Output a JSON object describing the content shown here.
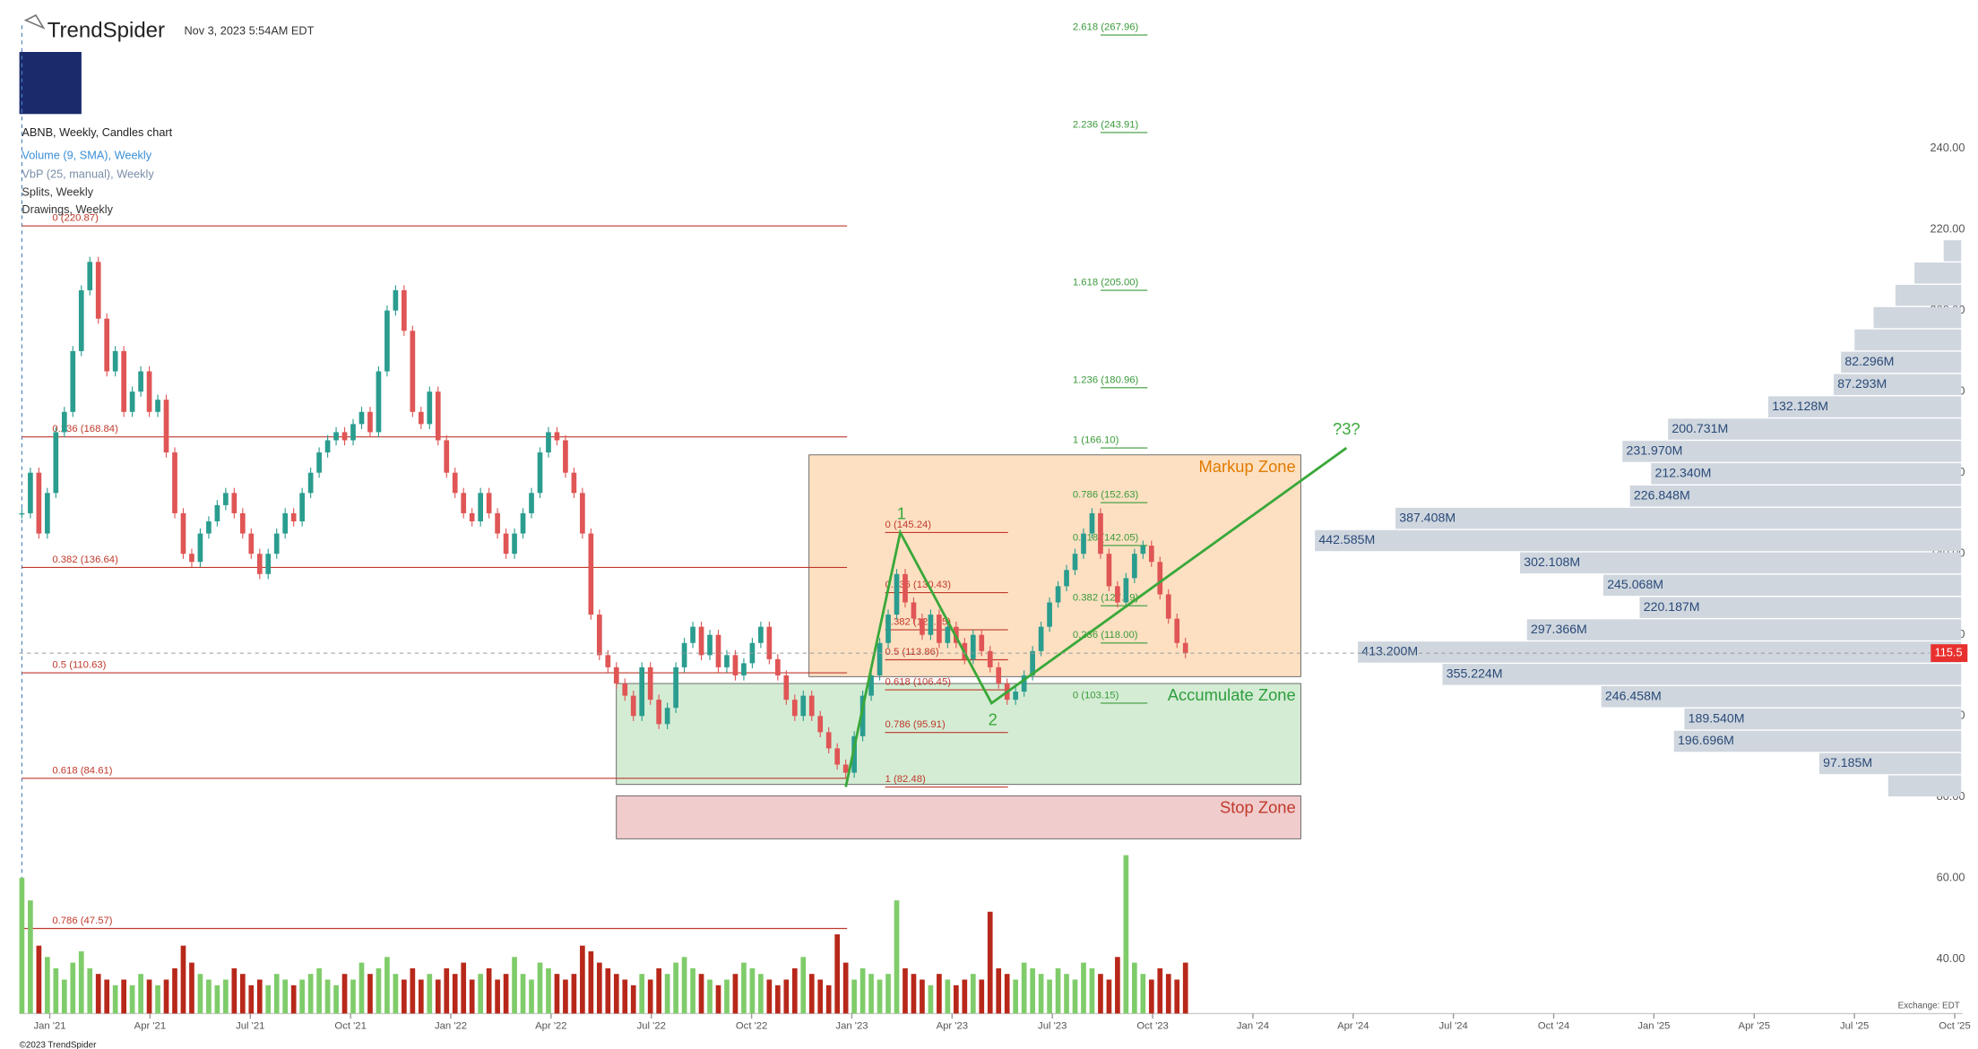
{
  "header": {
    "brand": "TrendSpider",
    "timestamp": "Nov 3, 2023 5:54AM EDT",
    "chart_title": "ABNB, Weekly, Candles chart",
    "indicators": [
      "Volume (9, SMA), Weekly",
      "VbP (25, manual), Weekly",
      "Splits, Weekly",
      "Drawings, Weekly"
    ],
    "exchange": "Exchange: EDT",
    "copyright": "©2023 TrendSpider"
  },
  "chart_data": {
    "type": "candlestick",
    "ylim": [
      26.6,
      276.6
    ],
    "yticks": [
      {
        "value": 40,
        "label": "40.00"
      },
      {
        "value": 60,
        "label": "60.00"
      },
      {
        "value": 80,
        "label": "80.00"
      },
      {
        "value": 100,
        "label": "100.00"
      },
      {
        "value": 120,
        "label": "120.00"
      },
      {
        "value": 140,
        "label": "140.00"
      },
      {
        "value": 160,
        "label": "160.00"
      },
      {
        "value": 180,
        "label": "180.00"
      },
      {
        "value": 200,
        "label": "200.00"
      },
      {
        "value": 220,
        "label": "220.00"
      },
      {
        "value": 240,
        "label": "240.00"
      }
    ],
    "xticks": [
      "Jan '21",
      "Apr '21",
      "Jul '21",
      "Oct '21",
      "Jan '22",
      "Apr '22",
      "Jul '22",
      "Oct '22",
      "Jan '23",
      "Apr '23",
      "Jul '23",
      "Oct '23",
      "Jan '24",
      "Apr '24",
      "Jul '24",
      "Oct '24",
      "Jan '25",
      "Apr '25",
      "Jul '25",
      "Oct '25"
    ],
    "up_color": "#2a9d8f",
    "down_color": "#e05555",
    "closes": [
      150,
      160,
      145,
      155,
      170,
      175,
      190,
      205,
      212,
      198,
      185,
      190,
      175,
      180,
      185,
      175,
      178,
      165,
      150,
      140,
      138,
      145,
      148,
      152,
      155,
      150,
      145,
      140,
      135,
      140,
      145,
      150,
      148,
      155,
      160,
      165,
      168,
      170,
      168,
      172,
      175,
      170,
      185,
      200,
      205,
      195,
      175,
      172,
      180,
      168,
      160,
      155,
      150,
      148,
      155,
      150,
      145,
      140,
      145,
      150,
      155,
      165,
      170,
      168,
      160,
      155,
      145,
      125,
      115,
      112,
      108,
      105,
      100,
      112,
      104,
      98,
      102,
      112,
      118,
      122,
      115,
      120,
      112,
      115,
      110,
      113,
      118,
      122,
      114,
      110,
      104,
      100,
      105,
      100,
      96,
      92,
      88,
      86,
      95,
      105,
      110,
      118,
      125,
      135,
      128,
      124,
      120,
      125,
      118,
      122,
      118,
      114,
      120,
      116,
      112,
      108,
      104,
      106,
      110,
      116,
      122,
      128,
      132,
      136,
      140,
      145,
      150,
      140,
      132,
      128,
      134,
      140,
      142,
      138,
      130,
      124,
      118,
      115.5
    ],
    "volumes": [
      24,
      20,
      12,
      10,
      8,
      6,
      9,
      11,
      8,
      7,
      6,
      5,
      6,
      5,
      7,
      6,
      5,
      6,
      8,
      12,
      9,
      7,
      6,
      5,
      6,
      8,
      7,
      5,
      6,
      5,
      7,
      6,
      5,
      6,
      7,
      8,
      6,
      5,
      7,
      6,
      9,
      7,
      8,
      10,
      7,
      6,
      8,
      6,
      7,
      6,
      8,
      7,
      9,
      6,
      7,
      8,
      6,
      7,
      10,
      7,
      6,
      9,
      8,
      7,
      6,
      7,
      12,
      11,
      9,
      8,
      7,
      6,
      5,
      7,
      6,
      8,
      7,
      9,
      10,
      8,
      7,
      6,
      5,
      6,
      7,
      9,
      8,
      7,
      6,
      5,
      6,
      8,
      10,
      7,
      6,
      5,
      14,
      9,
      6,
      8,
      7,
      6,
      7,
      20,
      8,
      7,
      6,
      5,
      7,
      6,
      5,
      6,
      7,
      6,
      18,
      8,
      7,
      6,
      9,
      8,
      7,
      6,
      8,
      7,
      6,
      9,
      8,
      7,
      6,
      10,
      28,
      9,
      7,
      6,
      8,
      7,
      6,
      9
    ],
    "current_price": {
      "value": 115.5,
      "label": "115.5"
    },
    "volume_profile": {
      "bins": [
        80,
        85.5,
        91,
        96.5,
        102,
        107.5,
        113,
        118.5,
        124,
        129.5,
        135,
        140.5,
        146,
        151.5,
        157,
        162.5,
        168,
        173.5,
        179,
        184.5,
        190,
        195.5,
        201,
        206.5,
        212,
        217.5
      ],
      "values": [
        50,
        97.185,
        196.696,
        189.54,
        246.458,
        355.224,
        413.2,
        297.366,
        220.187,
        245.068,
        302.108,
        442.585,
        387.408,
        226.848,
        212.34,
        231.97,
        200.731,
        132.128,
        87.293,
        82.296,
        73,
        60,
        45,
        32,
        12
      ],
      "value_labels": [
        null,
        "97.185M",
        "196.696M",
        "189.540M",
        "246.458M",
        "355.224M",
        "413.200M",
        "297.366M",
        "220.187M",
        "245.068M",
        "302.108M",
        "442.585M",
        "387.408M",
        "226.848M",
        "212.340M",
        "231.970M",
        "200.731M",
        "132.128M",
        "87.293M",
        "82.296M",
        null,
        null,
        null,
        null,
        null
      ]
    },
    "fib_main": [
      {
        "value": 220.87,
        "label": "0 (220.87)"
      },
      {
        "value": 168.84,
        "label": "0.236 (168.84)"
      },
      {
        "value": 136.64,
        "label": "0.382 (136.64)"
      },
      {
        "value": 110.63,
        "label": "0.5 (110.63)"
      },
      {
        "value": 84.61,
        "label": "0.618 (84.61)"
      },
      {
        "value": 47.57,
        "label": "0.786 (47.57)"
      }
    ],
    "fib_retrace": [
      {
        "value": 145.24,
        "label": "0 (145.24)"
      },
      {
        "value": 130.43,
        "label": "0.236 (130.43)"
      },
      {
        "value": 121.25,
        "label": "0.382 (121.25)"
      },
      {
        "value": 113.86,
        "label": "0.5 (113.86)"
      },
      {
        "value": 106.45,
        "label": "0.618 (106.45)"
      },
      {
        "value": 95.91,
        "label": "0.786 (95.91)"
      },
      {
        "value": 82.48,
        "label": "1 (82.48)"
      }
    ],
    "fib_extension": [
      {
        "value": 267.96,
        "label": "2.618 (267.96)"
      },
      {
        "value": 243.91,
        "label": "2.236 (243.91)"
      },
      {
        "value": 205.0,
        "label": "1.618 (205.00)"
      },
      {
        "value": 180.96,
        "label": "1.236 (180.96)"
      },
      {
        "value": 166.1,
        "label": "1 (166.10)"
      },
      {
        "value": 152.63,
        "label": "0.786 (152.63)"
      },
      {
        "value": 142.05,
        "label": "0.618 (142.05)"
      },
      {
        "value": 127.19,
        "label": "0.382 (127.19)"
      },
      {
        "value": 118.0,
        "label": "0.236 (118.00)"
      },
      {
        "value": 103.15,
        "label": "0 (103.15)"
      }
    ],
    "zones": [
      {
        "name": "Markup Zone",
        "range": [
          109.7,
          164.4
        ],
        "color": "#fde0c2",
        "text_color": "#e07b00"
      },
      {
        "name": "Accumulate Zone",
        "range": [
          83.1,
          108
        ],
        "color": "#d4ecd4",
        "text_color": "#2e9e3e"
      },
      {
        "name": "Stop Zone",
        "range": [
          69.7,
          80.3
        ],
        "color": "#f0cccc",
        "text_color": "#c0392b"
      }
    ],
    "waves": [
      {
        "label": null,
        "value": 82.48
      },
      {
        "label": "1",
        "value": 145.24
      },
      {
        "label": "2",
        "value": 103.15
      },
      {
        "label": "?3?",
        "value": 166.1
      }
    ]
  }
}
